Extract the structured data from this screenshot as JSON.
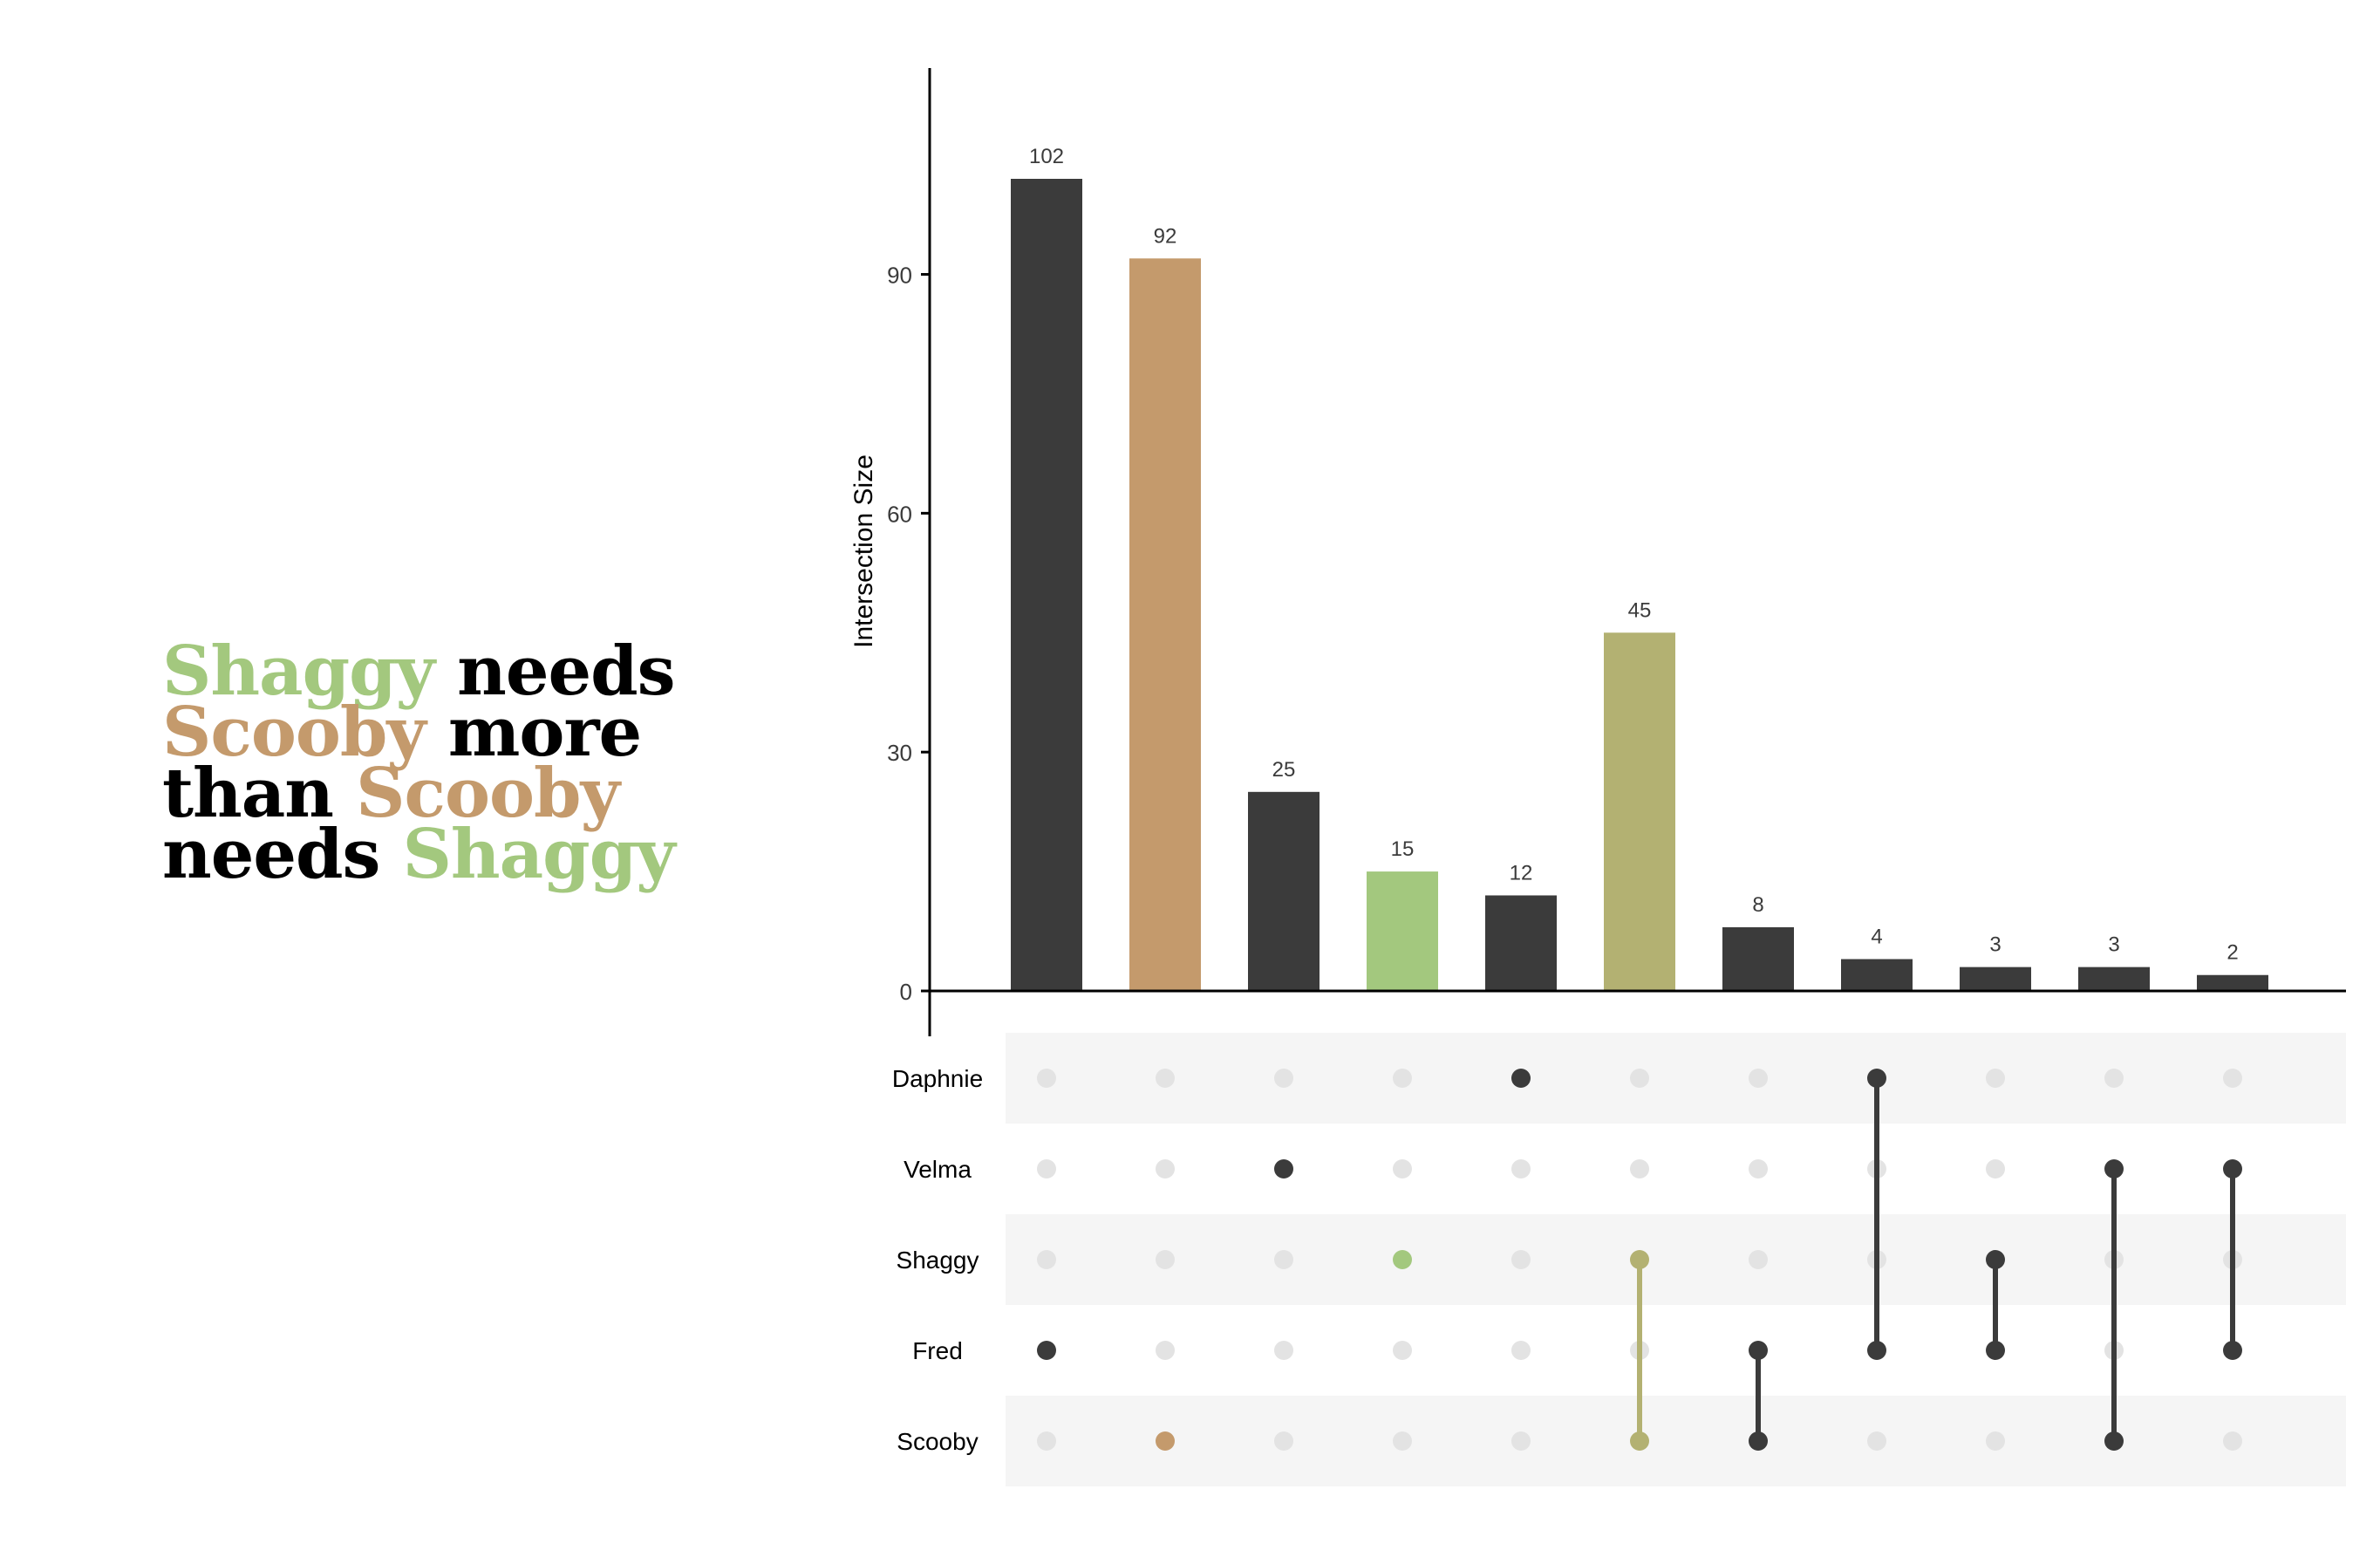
{
  "headline": {
    "lines": [
      [
        {
          "text": "Shaggy",
          "color": "#a3c87e"
        },
        {
          "text": " needs",
          "color": "#000000"
        }
      ],
      [
        {
          "text": "Scooby",
          "color": "#c49a6c"
        },
        {
          "text": " more",
          "color": "#000000"
        }
      ],
      [
        {
          "text": "than ",
          "color": "#000000"
        },
        {
          "text": "Scooby",
          "color": "#c49a6c"
        }
      ],
      [
        {
          "text": "needs ",
          "color": "#000000"
        },
        {
          "text": "Shaggy",
          "color": "#a3c87e"
        }
      ]
    ]
  },
  "chart_data": {
    "type": "bar",
    "ylabel": "Intersection Size",
    "yticks": [
      0,
      30,
      60,
      90
    ],
    "ylim": [
      0,
      117
    ],
    "sets": [
      "Daphnie",
      "Velma",
      "Shaggy",
      "Fred",
      "Scooby"
    ],
    "intersections": [
      {
        "value": 102,
        "sets": [
          "Fred"
        ],
        "color": "#3b3b3b"
      },
      {
        "value": 92,
        "sets": [
          "Scooby"
        ],
        "color": "#c49a6c"
      },
      {
        "value": 25,
        "sets": [
          "Velma"
        ],
        "color": "#3b3b3b"
      },
      {
        "value": 15,
        "sets": [
          "Shaggy"
        ],
        "color": "#a3c87e"
      },
      {
        "value": 12,
        "sets": [
          "Daphnie"
        ],
        "color": "#3b3b3b"
      },
      {
        "value": 45,
        "sets": [
          "Shaggy",
          "Scooby"
        ],
        "color": "#b3b172"
      },
      {
        "value": 8,
        "sets": [
          "Fred",
          "Scooby"
        ],
        "color": "#3b3b3b"
      },
      {
        "value": 4,
        "sets": [
          "Daphnie",
          "Fred"
        ],
        "color": "#3b3b3b"
      },
      {
        "value": 3,
        "sets": [
          "Shaggy",
          "Fred"
        ],
        "color": "#3b3b3b"
      },
      {
        "value": 3,
        "sets": [
          "Velma",
          "Scooby"
        ],
        "color": "#3b3b3b"
      },
      {
        "value": 2,
        "sets": [
          "Velma",
          "Fred"
        ],
        "color": "#3b3b3b"
      }
    ],
    "colors": {
      "axis": "#000000",
      "inactive_dot": "#e3e3e3",
      "stripe": "#f5f5f5",
      "label_text": "#3b3b3b"
    }
  }
}
